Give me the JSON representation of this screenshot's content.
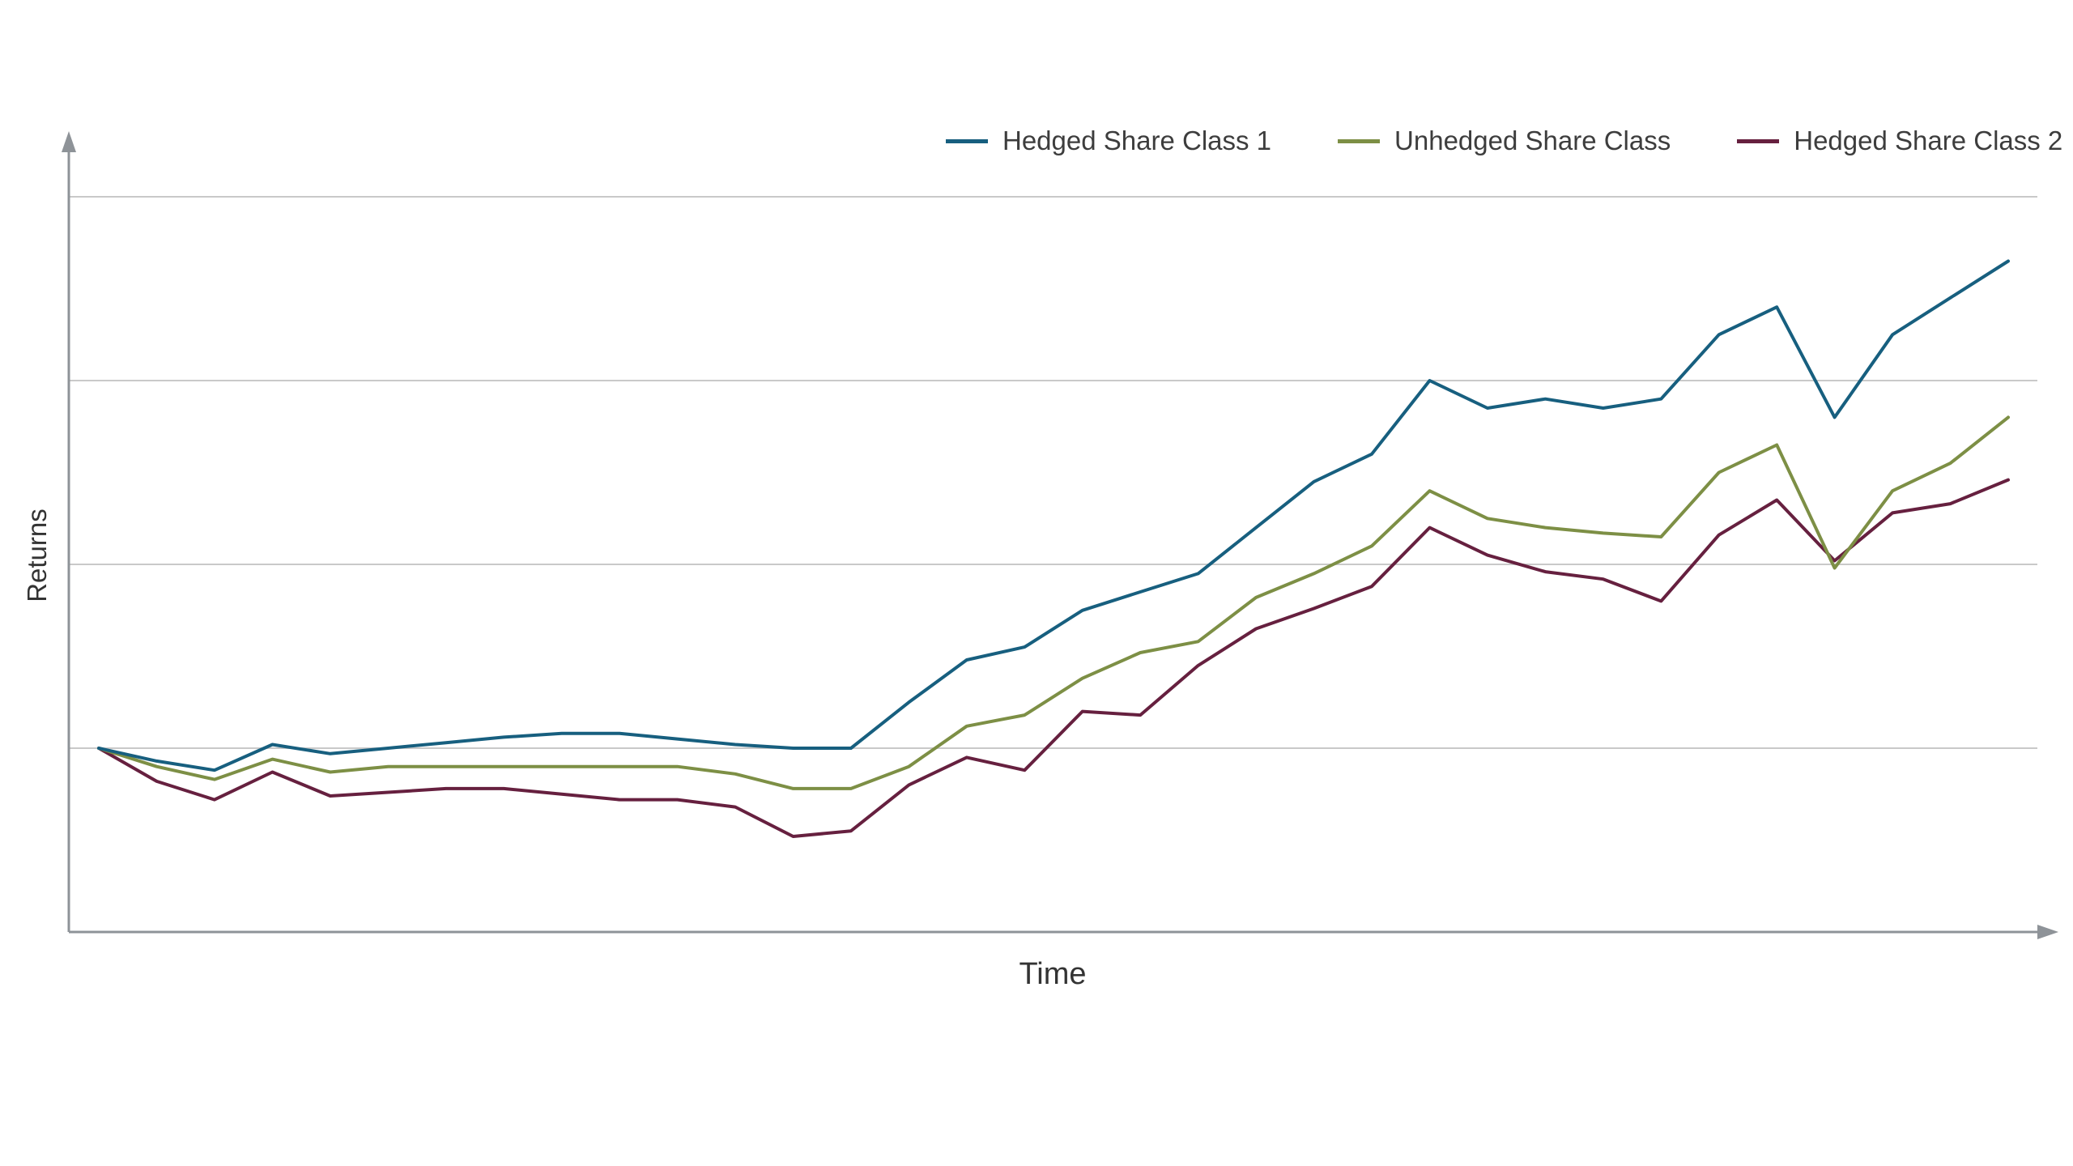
{
  "chart_data": {
    "type": "line",
    "title": "",
    "xlabel": "Time",
    "ylabel": "Returns",
    "x_tick_labels": [],
    "y_tick_labels": [],
    "value_units": "relative returns in horizontal-gridline units (no numeric tick labels shown); all series start at 0",
    "ylim": [
      -1.0,
      3.2
    ],
    "gridline_values": [
      0,
      1,
      2,
      3
    ],
    "grid": "horizontal",
    "legend_position": "top-right",
    "axis_color": "#8e9398",
    "gridline_color": "#c9c9c9",
    "text_color": "#3d3d3d",
    "series": [
      {
        "name": "Hedged Share Class 1",
        "color": "#175f7f",
        "values": [
          0,
          -0.07,
          -0.12,
          0.02,
          -0.03,
          0,
          0.03,
          0.06,
          0.08,
          0.08,
          0.05,
          0.02,
          0,
          0,
          0.25,
          0.48,
          0.55,
          0.75,
          0.85,
          0.95,
          1.2,
          1.45,
          1.6,
          2.0,
          1.85,
          1.9,
          1.85,
          1.9,
          2.25,
          2.4,
          1.8,
          2.25,
          2.45,
          2.65
        ]
      },
      {
        "name": "Unhedged Share Class",
        "color": "#7d8f45",
        "values": [
          0,
          -0.1,
          -0.17,
          -0.06,
          -0.13,
          -0.1,
          -0.1,
          -0.1,
          -0.1,
          -0.1,
          -0.1,
          -0.14,
          -0.22,
          -0.22,
          -0.1,
          0.12,
          0.18,
          0.38,
          0.52,
          0.58,
          0.82,
          0.95,
          1.1,
          1.4,
          1.25,
          1.2,
          1.17,
          1.15,
          1.5,
          1.65,
          0.98,
          1.4,
          1.55,
          1.8
        ]
      },
      {
        "name": "Hedged Share Class 2",
        "color": "#66203f",
        "values": [
          0,
          -0.18,
          -0.28,
          -0.13,
          -0.26,
          -0.24,
          -0.22,
          -0.22,
          -0.25,
          -0.28,
          -0.28,
          -0.32,
          -0.48,
          -0.45,
          -0.2,
          -0.05,
          -0.12,
          0.2,
          0.18,
          0.45,
          0.65,
          0.76,
          0.88,
          1.2,
          1.05,
          0.96,
          0.92,
          0.8,
          1.16,
          1.35,
          1.02,
          1.28,
          1.33,
          1.46
        ]
      }
    ]
  }
}
